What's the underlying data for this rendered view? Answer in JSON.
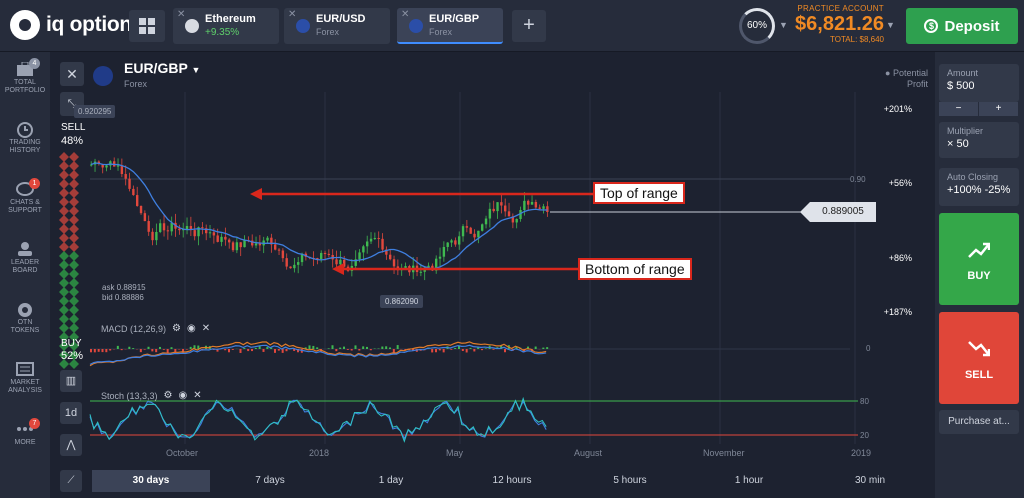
{
  "topbar": {
    "logo": "iq option",
    "tabs": [
      {
        "name": "Ethereum",
        "sub": "+9.35%"
      },
      {
        "name": "EUR/USD",
        "sub": "Forex"
      },
      {
        "name": "EUR/GBP",
        "sub": "Forex"
      }
    ],
    "gauge": "60%",
    "account_label": "PRACTICE ACCOUNT",
    "balance": "$6,821.26",
    "total": "TOTAL: $8,640",
    "deposit": "Deposit"
  },
  "sidebar": {
    "items": [
      {
        "label1": "TOTAL",
        "label2": "PORTFOLIO",
        "badge": "4"
      },
      {
        "label1": "TRADING",
        "label2": "HISTORY",
        "badge": ""
      },
      {
        "label1": "CHATS &",
        "label2": "SUPPORT",
        "badge": "1"
      },
      {
        "label1": "LEADER",
        "label2": "BOARD",
        "badge": ""
      },
      {
        "label1": "OTN",
        "label2": "TOKENS",
        "badge": ""
      },
      {
        "label1": "MARKET",
        "label2": "ANALYSIS",
        "badge": ""
      },
      {
        "label1": "MORE",
        "label2": "",
        "badge": "7"
      }
    ]
  },
  "chart": {
    "asset": "EUR/GBP",
    "asset_sub": "Forex",
    "potential": "Potential Profit",
    "sell_label": "SELL",
    "sell_pct": "48%",
    "buy_label": "BUY",
    "buy_pct": "52%",
    "hi_price": "0.920295",
    "low_price": "0.862090",
    "ask": "ask 0.88915",
    "bid": "bid 0.88886",
    "current_price": "0.889005",
    "level_090": "0.90",
    "profit_levels": [
      "+201%",
      "+56%",
      "+86%",
      "+187%"
    ],
    "annotation_top": "Top of range",
    "annotation_bottom": "Bottom of range",
    "macd_label": "MACD (12,26,9)",
    "macd_zero": "0",
    "stoch_label": "Stoch (13,3,3)",
    "stoch_80": "80",
    "stoch_20": "20",
    "months": [
      "October",
      "2018",
      "May",
      "August",
      "November",
      "2019"
    ],
    "timeframe_btn": "1d"
  },
  "timebar": {
    "options": [
      "30 days",
      "7 days",
      "1 day",
      "12 hours",
      "5 hours",
      "1 hour",
      "30 min"
    ],
    "active": "30 days"
  },
  "right": {
    "amount_label": "Amount",
    "amount_value": "$  500",
    "minus": "−",
    "plus": "+",
    "mult_label": "Multiplier",
    "mult_value": "× 50",
    "autoclose_label": "Auto Closing",
    "autoclose_value": "+100% -25%",
    "buy": "BUY",
    "sell": "SELL",
    "purchase": "Purchase at..."
  }
}
